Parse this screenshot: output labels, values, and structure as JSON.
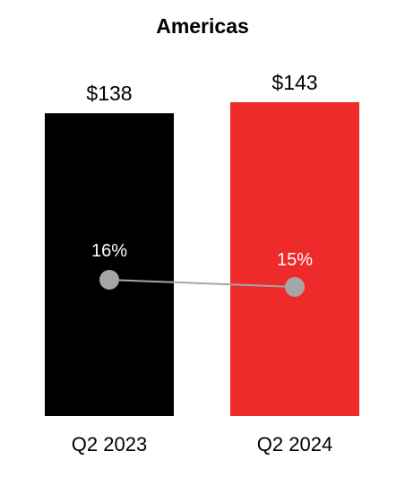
{
  "chart_data": {
    "type": "bar",
    "title": "Americas",
    "categories": [
      "Q2 2023",
      "Q2 2024"
    ],
    "values": [
      138,
      143
    ],
    "value_labels": [
      "$138",
      "$143"
    ],
    "bar_colors": [
      "#000000",
      "#ee2a2a"
    ],
    "ylim": [
      0,
      143
    ],
    "secondary_series": {
      "type": "line",
      "values": [
        16,
        15
      ],
      "labels": [
        "16%",
        "15%"
      ],
      "color": "#a6a6a6"
    },
    "xlabel": "",
    "ylabel": "",
    "grid": false,
    "legend": "none"
  }
}
